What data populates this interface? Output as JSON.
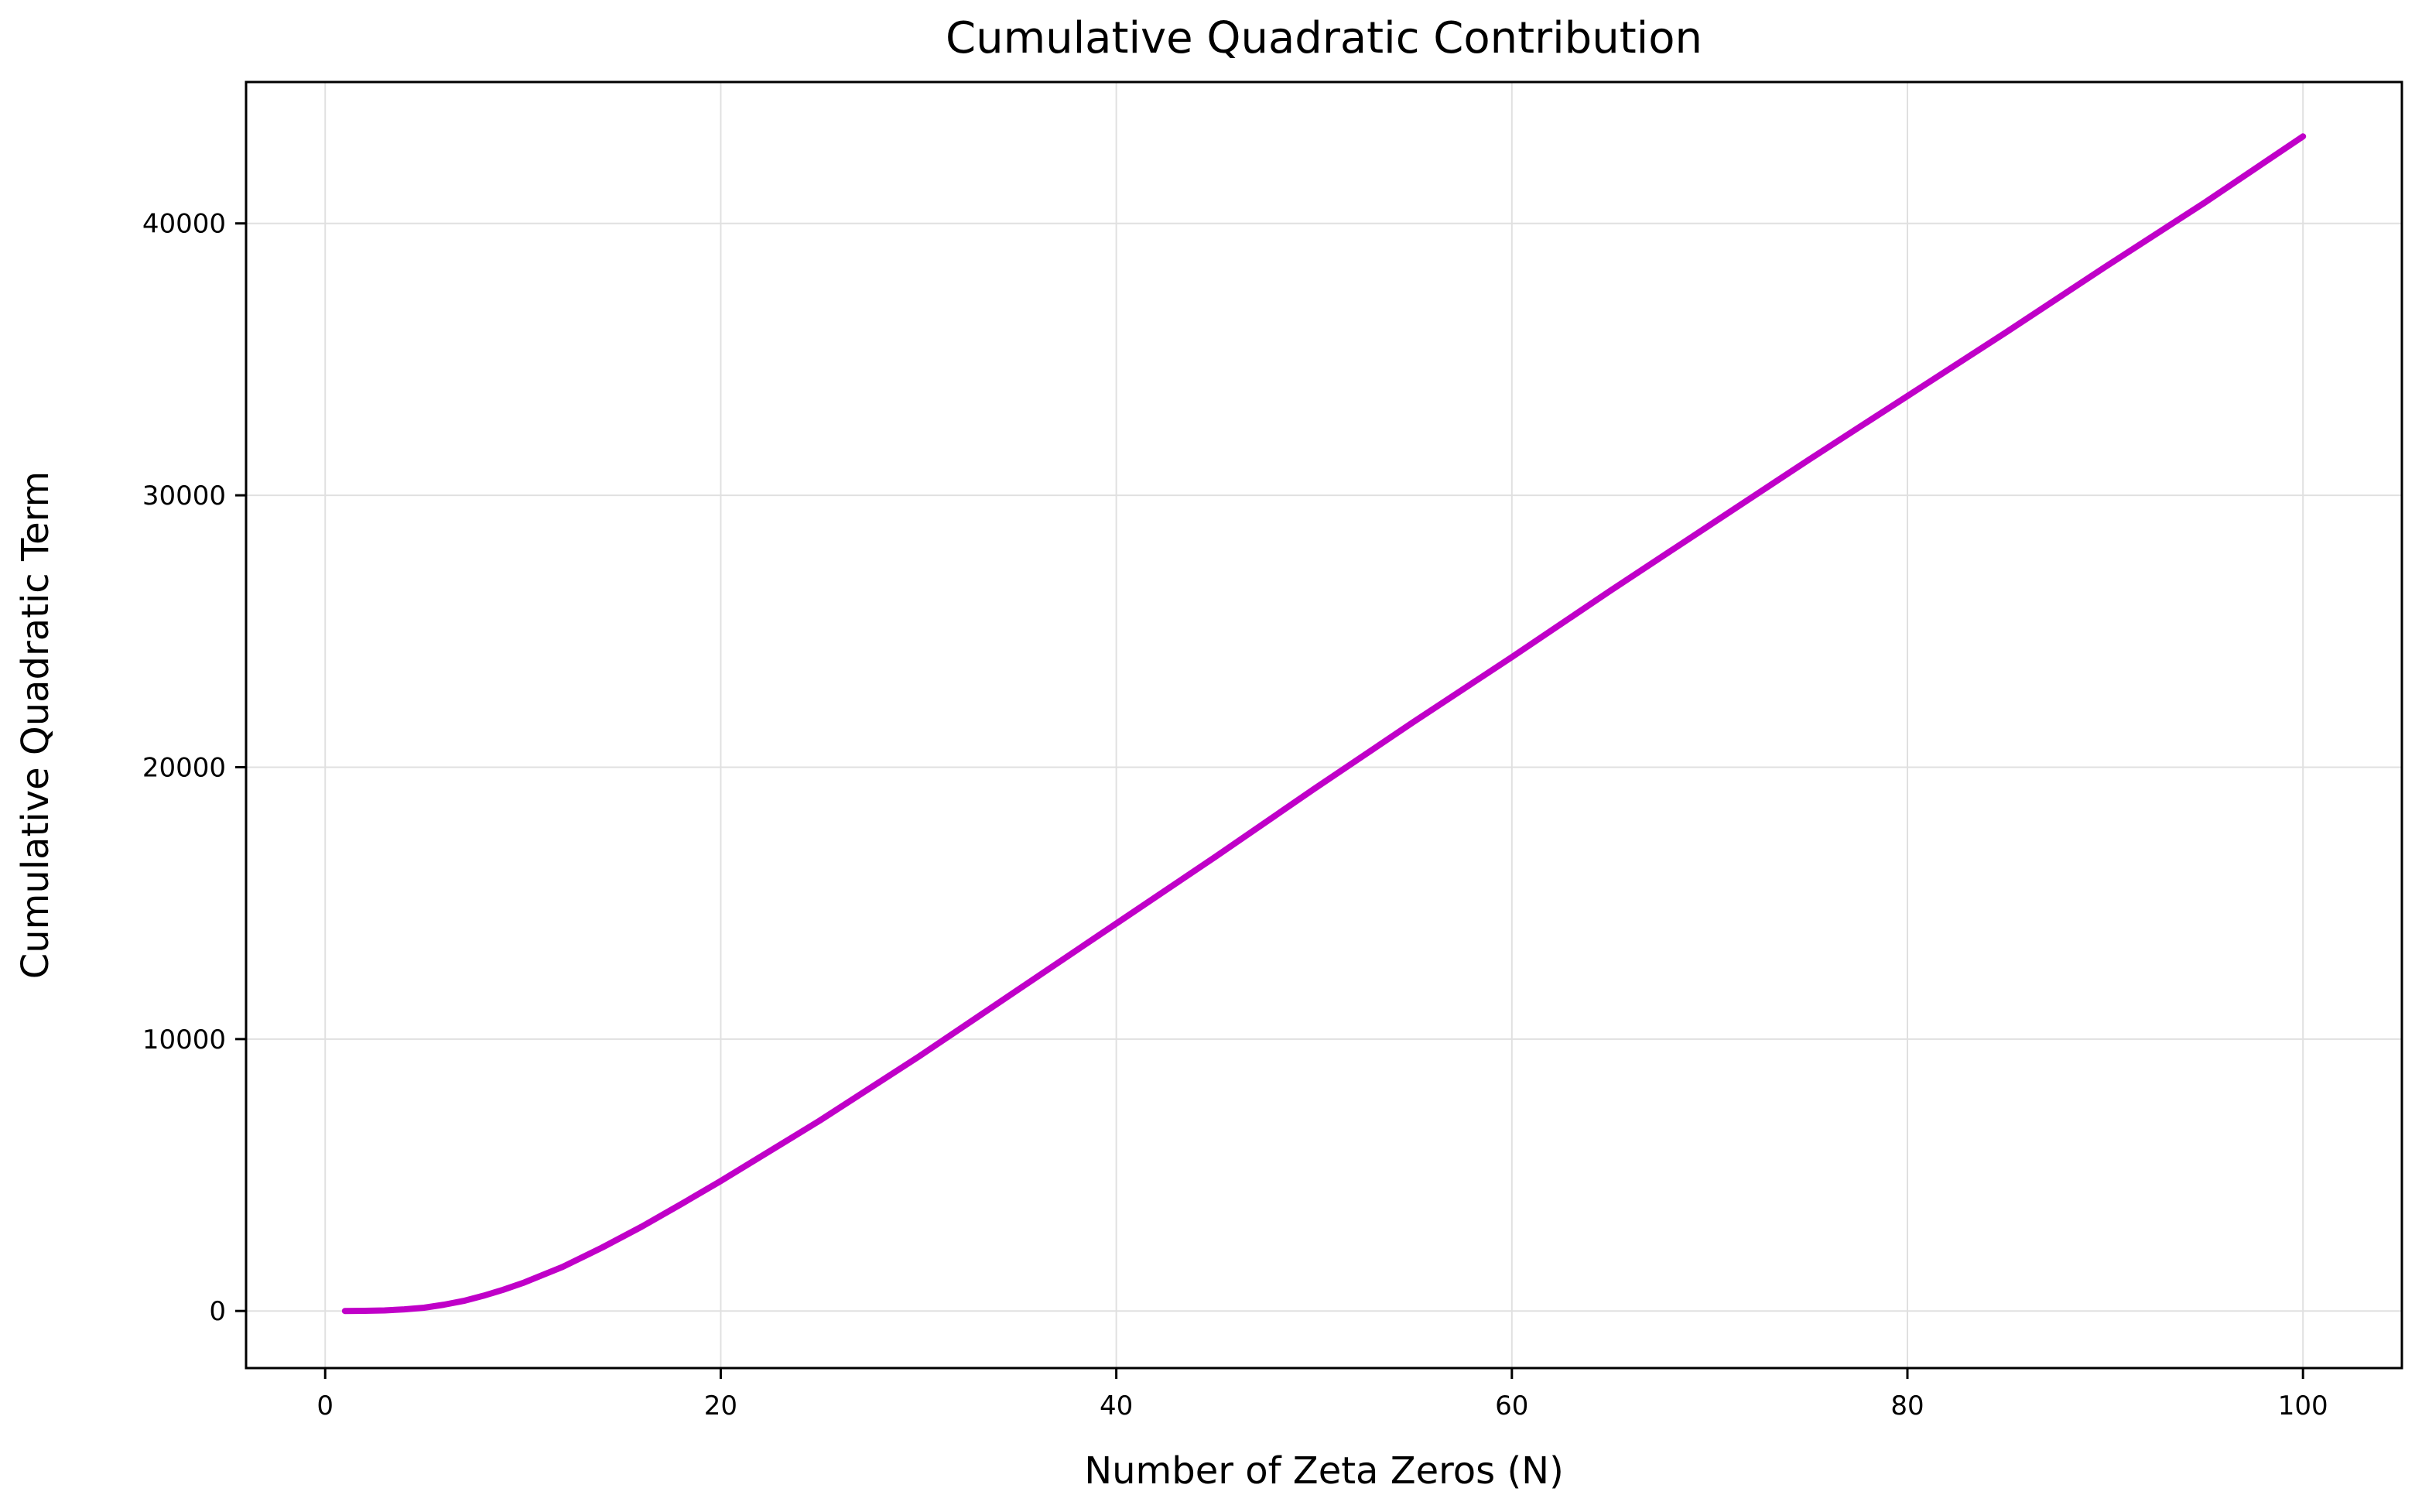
{
  "chart_data": {
    "type": "line",
    "title": "Cumulative Quadratic Contribution",
    "xlabel": "Number of Zeta Zeros (N)",
    "ylabel": "Cumulative Quadratic Term",
    "xlim": [
      -4,
      105
    ],
    "ylim": [
      -2100,
      45200
    ],
    "xticks": [
      0,
      20,
      40,
      60,
      80,
      100
    ],
    "yticks": [
      0,
      10000,
      20000,
      30000,
      40000
    ],
    "xtick_labels": [
      "0",
      "20",
      "40",
      "60",
      "80",
      "100"
    ],
    "ytick_labels": [
      "0",
      "10000",
      "20000",
      "30000",
      "40000"
    ],
    "grid": true,
    "series": [
      {
        "color": "#c000c8",
        "x": [
          1,
          2,
          3,
          4,
          5,
          6,
          7,
          8,
          9,
          10,
          12,
          14,
          16,
          18,
          20,
          25,
          30,
          35,
          40,
          45,
          50,
          55,
          60,
          65,
          70,
          75,
          80,
          85,
          90,
          95,
          100
        ],
        "y": [
          0,
          5,
          20,
          60,
          120,
          230,
          370,
          560,
          780,
          1030,
          1620,
          2330,
          3100,
          3930,
          4780,
          7000,
          9350,
          11800,
          14250,
          16700,
          19200,
          21650,
          24050,
          26500,
          28900,
          31300,
          33650,
          36000,
          38400,
          40750,
          43200
        ]
      }
    ]
  }
}
